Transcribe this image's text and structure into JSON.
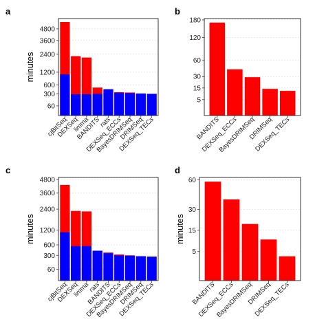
{
  "chart_data": [
    {
      "panel": "a",
      "type": "bar",
      "ylabel": "minutes",
      "y_scale": "sqrt",
      "ylim": [
        0,
        6000
      ],
      "yticks": [
        60,
        300,
        600,
        1200,
        2400,
        3600,
        4800
      ],
      "ytick_labels": [
        "60",
        "300",
        "600",
        "1200",
        "2400",
        "3600",
        "4800"
      ],
      "grid": true,
      "categories": [
        "cjBitSeq",
        "DEXSeq",
        "limma",
        "BANDITS",
        "rats",
        "DEXSeq_ECCs",
        "BayesDRIMSeq",
        "DRIMSeq",
        "DEXSeq_TECs"
      ],
      "series": [
        {
          "color": "#0000ff",
          "values": [
            1080,
            290,
            290,
            300,
            440,
            330,
            320,
            310,
            300
          ]
        },
        {
          "color": "#ff0000",
          "values": [
            5580,
            2250,
            2150,
            500,
            440,
            350,
            340,
            310,
            300
          ]
        }
      ]
    },
    {
      "panel": "b",
      "type": "bar",
      "ylabel": "",
      "y_scale": "sqrt",
      "ylim": [
        0,
        185
      ],
      "yticks": [
        5,
        15,
        30,
        60,
        120,
        180
      ],
      "ytick_labels": [
        "5",
        "15",
        "30",
        "60",
        "120",
        "180"
      ],
      "grid": true,
      "categories": [
        "BANDITS",
        "DEXSeq_ECCs",
        "BayesDRIMSeq",
        "DRIMSeq",
        "DEXSeq_TECs"
      ],
      "series": [
        {
          "color": "#ff0000",
          "values": [
            170,
            42,
            29,
            14,
            12
          ]
        }
      ]
    },
    {
      "panel": "c",
      "type": "bar",
      "ylabel": "minutes",
      "y_scale": "sqrt",
      "ylim": [
        0,
        5000
      ],
      "yticks": [
        60,
        300,
        600,
        1200,
        2400,
        3600,
        4800
      ],
      "ytick_labels": [
        "60",
        "300",
        "600",
        "1200",
        "2400",
        "3600",
        "4800"
      ],
      "grid": true,
      "categories": [
        "cjBitSeq",
        "DEXSeq",
        "limma",
        "rats",
        "BANDITS",
        "DEXSeq_ECCs",
        "BayesDRIMSeq",
        "DRIMSeq",
        "DEXSeq_TECs"
      ],
      "series": [
        {
          "color": "#0000ff",
          "values": [
            1100,
            560,
            560,
            420,
            350,
            300,
            290,
            280,
            270
          ]
        },
        {
          "color": "#ff0000",
          "values": [
            4300,
            2280,
            2250,
            420,
            370,
            320,
            300,
            280,
            270
          ]
        }
      ]
    },
    {
      "panel": "d",
      "type": "bar",
      "ylabel": "minutes",
      "y_scale": "sqrt",
      "ylim": [
        0,
        63
      ],
      "yticks": [
        5,
        15,
        30,
        60
      ],
      "ytick_labels": [
        "5",
        "15",
        "30",
        "60"
      ],
      "grid": true,
      "categories": [
        "BANDITS",
        "DEXSeq_ECCs",
        "BayesDRIMSeq",
        "DRIMSeq",
        "DEXSeq_TECs"
      ],
      "series": [
        {
          "color": "#ff0000",
          "values": [
            58,
            39,
            19,
            10,
            3.5
          ]
        }
      ]
    }
  ]
}
